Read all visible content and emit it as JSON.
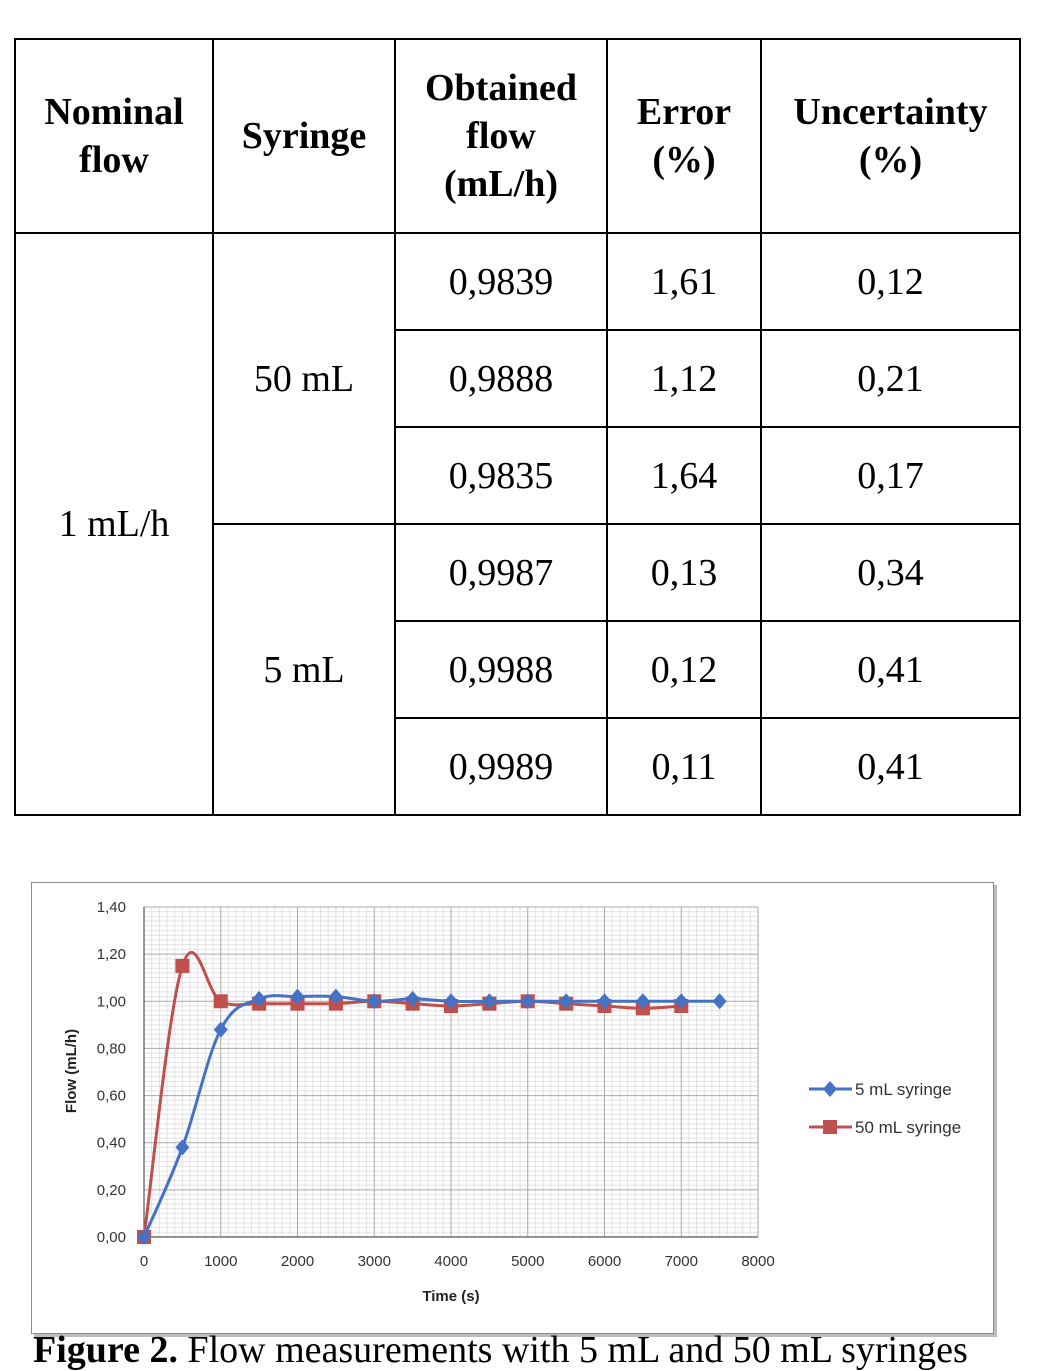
{
  "table": {
    "headers": {
      "nominal": [
        "Nominal",
        "flow"
      ],
      "syringe": [
        "Syringe"
      ],
      "obtained": [
        "Obtained",
        "flow",
        "(mL/h)"
      ],
      "error": [
        "Error",
        "(%)"
      ],
      "uncertainty": [
        "Uncertainty",
        "(%)"
      ]
    },
    "nominal_flow": "1 mL/h",
    "groups": [
      {
        "syringe": "50 mL",
        "rows": [
          {
            "obtained": "0,9839",
            "error": "1,61",
            "uncertainty": "0,12"
          },
          {
            "obtained": "0,9888",
            "error": "1,12",
            "uncertainty": "0,21"
          },
          {
            "obtained": "0,9835",
            "error": "1,64",
            "uncertainty": "0,17"
          }
        ]
      },
      {
        "syringe": "5 mL",
        "rows": [
          {
            "obtained": "0,9987",
            "error": "0,13",
            "uncertainty": "0,34"
          },
          {
            "obtained": "0,9988",
            "error": "0,12",
            "uncertainty": "0,41"
          },
          {
            "obtained": "0,9989",
            "error": "0,11",
            "uncertainty": "0,41"
          }
        ]
      }
    ]
  },
  "chart_data": {
    "type": "line",
    "xlabel": "Time (s)",
    "ylabel": "Flow (mL/h)",
    "xlim": [
      0,
      8000
    ],
    "ylim": [
      0,
      1.4
    ],
    "x_ticks": [
      0,
      1000,
      2000,
      3000,
      4000,
      5000,
      6000,
      7000,
      8000
    ],
    "x_tick_labels": [
      "0",
      "1000",
      "2000",
      "3000",
      "4000",
      "5000",
      "6000",
      "7000",
      "8000"
    ],
    "y_ticks": [
      0,
      0.2,
      0.4,
      0.6,
      0.8,
      1.0,
      1.2,
      1.4
    ],
    "y_tick_labels": [
      "0,00",
      "0,20",
      "0,40",
      "0,60",
      "0,80",
      "1,00",
      "1,20",
      "1,40"
    ],
    "grid": true,
    "legend_position": "right",
    "series": [
      {
        "name": "5 mL syringe",
        "color": "#4472c4",
        "marker": "diamond",
        "x": [
          0,
          500,
          1000,
          1500,
          2000,
          2500,
          3000,
          3500,
          4000,
          4500,
          5000,
          5500,
          6000,
          6500,
          7000,
          7500
        ],
        "y": [
          0.0,
          0.38,
          0.88,
          1.01,
          1.02,
          1.02,
          1.0,
          1.01,
          1.0,
          1.0,
          1.0,
          1.0,
          1.0,
          1.0,
          1.0,
          1.0
        ]
      },
      {
        "name": "50 mL syringe",
        "color": "#c0504d",
        "marker": "square",
        "x": [
          0,
          500,
          1000,
          1500,
          2000,
          2500,
          3000,
          3500,
          4000,
          4500,
          5000,
          5500,
          6000,
          6500,
          7000
        ],
        "y": [
          0.0,
          1.15,
          1.0,
          0.99,
          0.99,
          0.99,
          1.0,
          0.99,
          0.98,
          0.99,
          1.0,
          0.99,
          0.98,
          0.97,
          0.98
        ]
      }
    ]
  },
  "caption": {
    "label": "Figure 2.",
    "text": "Flow measurements with 5 mL and 50 mL syringes"
  }
}
